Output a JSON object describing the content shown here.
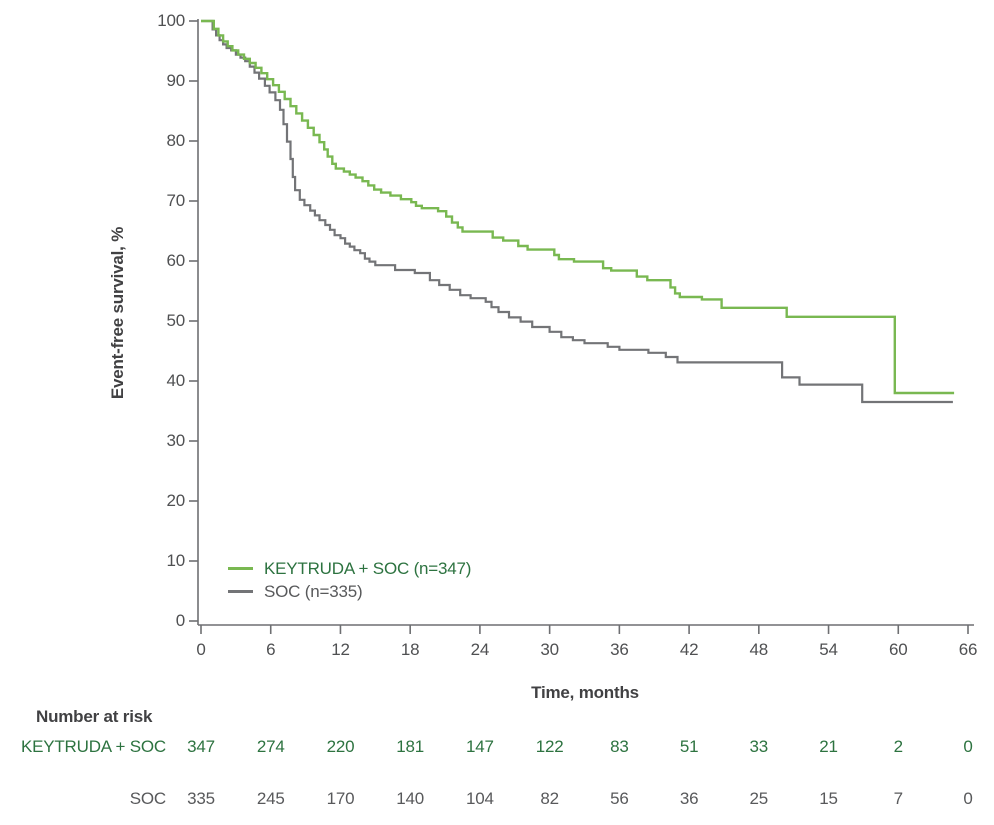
{
  "colors": {
    "keytruda_line": "#79b851",
    "soc_line": "#737477",
    "keytruda_text": "#2d7340",
    "soc_text": "#58595b",
    "axis": "#4f5052",
    "title_text": "#414143"
  },
  "chart": {
    "y_axis": {
      "title": "Event-free survival, %",
      "tick_labels": [
        "100",
        "90",
        "80",
        "70",
        "60",
        "50",
        "40",
        "30",
        "20",
        "10",
        "0"
      ]
    },
    "x_axis": {
      "title": "Time, months",
      "tick_labels": [
        "0",
        "6",
        "12",
        "18",
        "24",
        "30",
        "36",
        "42",
        "48",
        "54",
        "60",
        "66"
      ]
    },
    "legend": [
      {
        "label": "KEYTRUDA + SOC (n=347)",
        "color": "#79b851",
        "text_color": "#2d7340"
      },
      {
        "label": "SOC (n=335)",
        "color": "#737477",
        "text_color": "#58595b"
      }
    ]
  },
  "chart_data": {
    "type": "line",
    "subtype": "kaplan-meier-step",
    "xlabel": "Time, months",
    "ylabel": "Event-free survival, %",
    "xlim": [
      0,
      66
    ],
    "ylim": [
      0,
      100
    ],
    "x_ticks": [
      0,
      6,
      12,
      18,
      24,
      30,
      36,
      42,
      48,
      54,
      60,
      66
    ],
    "y_ticks": [
      0,
      10,
      20,
      30,
      40,
      50,
      60,
      70,
      80,
      90,
      100
    ],
    "grid": false,
    "legend_position": "inside-bottom-left",
    "series": [
      {
        "name": "KEYTRUDA + SOC (n=347)",
        "color": "#79b851",
        "stroke_width": 2.4,
        "points": [
          [
            0,
            100
          ],
          [
            0.9,
            100
          ],
          [
            1.1,
            98.7
          ],
          [
            1.5,
            97.6
          ],
          [
            1.9,
            96.6
          ],
          [
            2.3,
            95.8
          ],
          [
            2.7,
            95.1
          ],
          [
            3.2,
            94.4
          ],
          [
            3.7,
            93.7
          ],
          [
            4.2,
            93
          ],
          [
            4.7,
            92.2
          ],
          [
            5.2,
            91.3
          ],
          [
            5.7,
            90.3
          ],
          [
            6.2,
            89.3
          ],
          [
            6.7,
            88.2
          ],
          [
            7.2,
            87
          ],
          [
            7.7,
            85.8
          ],
          [
            8.2,
            84.6
          ],
          [
            8.7,
            83.4
          ],
          [
            9.2,
            82.2
          ],
          [
            9.7,
            81
          ],
          [
            10.2,
            79.8
          ],
          [
            10.6,
            78.6
          ],
          [
            10.9,
            77.4
          ],
          [
            11.3,
            76.2
          ],
          [
            11.6,
            75.4
          ],
          [
            12.3,
            74.9
          ],
          [
            12.8,
            74.4
          ],
          [
            13.3,
            73.9
          ],
          [
            13.9,
            73.3
          ],
          [
            14.4,
            72.6
          ],
          [
            14.9,
            71.9
          ],
          [
            15.5,
            71.4
          ],
          [
            16.3,
            70.9
          ],
          [
            17.2,
            70.3
          ],
          [
            18.1,
            69.8
          ],
          [
            18.5,
            69.2
          ],
          [
            19,
            68.8
          ],
          [
            20.4,
            68.3
          ],
          [
            21.1,
            67.4
          ],
          [
            21.6,
            66.4
          ],
          [
            22.1,
            65.6
          ],
          [
            22.5,
            64.9
          ],
          [
            25.1,
            63.9
          ],
          [
            26,
            63.4
          ],
          [
            27.3,
            62.5
          ],
          [
            28.1,
            61.9
          ],
          [
            30.4,
            61
          ],
          [
            30.8,
            60.3
          ],
          [
            32.1,
            59.9
          ],
          [
            34.6,
            58.8
          ],
          [
            35.3,
            58.4
          ],
          [
            37.5,
            57.4
          ],
          [
            38.4,
            56.8
          ],
          [
            40.4,
            55.6
          ],
          [
            40.8,
            54.6
          ],
          [
            41.2,
            54
          ],
          [
            43.1,
            53.6
          ],
          [
            44.8,
            52.2
          ],
          [
            50.4,
            50.7
          ],
          [
            59.7,
            38
          ],
          [
            64.8,
            38
          ]
        ]
      },
      {
        "name": "SOC (n=335)",
        "color": "#737477",
        "stroke_width": 2.2,
        "points": [
          [
            0,
            100
          ],
          [
            0.8,
            100
          ],
          [
            1,
            98.6
          ],
          [
            1.3,
            97.6
          ],
          [
            1.6,
            96.8
          ],
          [
            1.9,
            96.1
          ],
          [
            2.2,
            95.5
          ],
          [
            2.6,
            95.1
          ],
          [
            3,
            94.4
          ],
          [
            3.4,
            93.9
          ],
          [
            3.8,
            93.3
          ],
          [
            4.2,
            92.4
          ],
          [
            4.6,
            91.4
          ],
          [
            5,
            90.4
          ],
          [
            5.5,
            89.2
          ],
          [
            5.9,
            88.1
          ],
          [
            6.4,
            86.8
          ],
          [
            6.8,
            85.2
          ],
          [
            7.1,
            82.8
          ],
          [
            7.4,
            79.9
          ],
          [
            7.7,
            77
          ],
          [
            7.9,
            74
          ],
          [
            8.1,
            71.8
          ],
          [
            8.5,
            70.2
          ],
          [
            8.9,
            69.3
          ],
          [
            9.4,
            68.4
          ],
          [
            9.8,
            67.6
          ],
          [
            10.2,
            66.8
          ],
          [
            10.7,
            66
          ],
          [
            11.1,
            65.2
          ],
          [
            11.5,
            64.3
          ],
          [
            12,
            63.8
          ],
          [
            12.4,
            62.9
          ],
          [
            12.8,
            62.4
          ],
          [
            13.2,
            61.8
          ],
          [
            13.7,
            61.3
          ],
          [
            14.1,
            60.4
          ],
          [
            14.5,
            59.9
          ],
          [
            15,
            59.3
          ],
          [
            16.7,
            58.5
          ],
          [
            18.4,
            58
          ],
          [
            19.7,
            56.8
          ],
          [
            20.5,
            56
          ],
          [
            21.4,
            55.2
          ],
          [
            22.3,
            54.3
          ],
          [
            23.2,
            53.8
          ],
          [
            24.5,
            53.2
          ],
          [
            25,
            52.3
          ],
          [
            25.6,
            51.5
          ],
          [
            26.5,
            50.6
          ],
          [
            27.5,
            49.9
          ],
          [
            28.5,
            49
          ],
          [
            30,
            48.2
          ],
          [
            31,
            47.3
          ],
          [
            32,
            46.8
          ],
          [
            33,
            46.3
          ],
          [
            35,
            45.7
          ],
          [
            36,
            45.2
          ],
          [
            38.5,
            44.7
          ],
          [
            40,
            44
          ],
          [
            41,
            43.1
          ],
          [
            50,
            40.6
          ],
          [
            51.5,
            39.4
          ],
          [
            56.9,
            36.5
          ],
          [
            64.7,
            36.5
          ]
        ]
      }
    ]
  },
  "risk_table": {
    "title": "Number at risk",
    "time_points": [
      0,
      6,
      12,
      18,
      24,
      30,
      36,
      42,
      48,
      54,
      60,
      66
    ],
    "rows": [
      {
        "label": "KEYTRUDA + SOC",
        "text_color": "#2d7340",
        "values": [
          "347",
          "274",
          "220",
          "181",
          "147",
          "122",
          "83",
          "51",
          "33",
          "21",
          "2",
          "0"
        ]
      },
      {
        "label": "SOC",
        "text_color": "#58595b",
        "values": [
          "335",
          "245",
          "170",
          "140",
          "104",
          "82",
          "56",
          "36",
          "25",
          "15",
          "7",
          "0"
        ]
      }
    ]
  }
}
